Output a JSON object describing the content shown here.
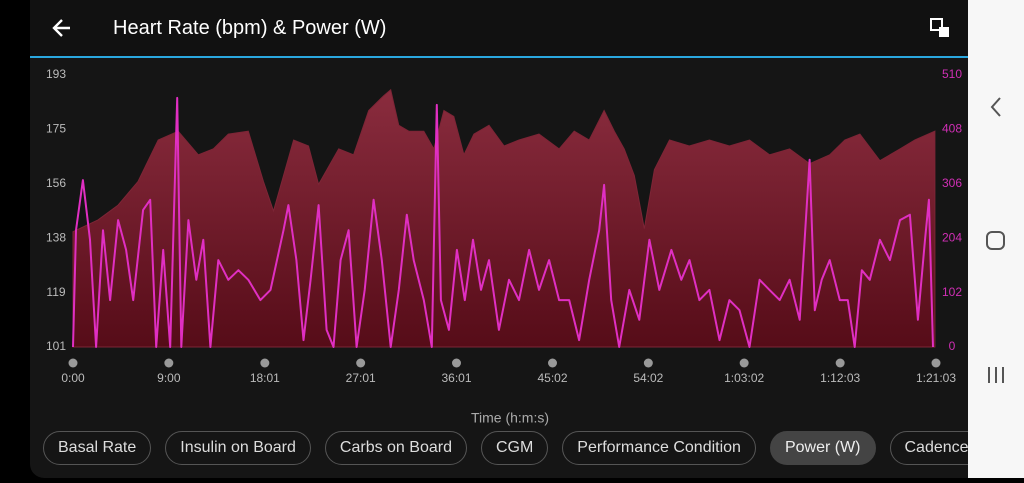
{
  "header": {
    "title": "Heart Rate (bpm) & Power (W)"
  },
  "chart_data": {
    "type": "line",
    "xlabel": "Time (h:m:s)",
    "xlim": [
      0,
      4863
    ],
    "xticks": [
      {
        "value": 0,
        "label": "0:00"
      },
      {
        "value": 540,
        "label": "9:00"
      },
      {
        "value": 1081,
        "label": "18:01"
      },
      {
        "value": 1621,
        "label": "27:01"
      },
      {
        "value": 2161,
        "label": "36:01"
      },
      {
        "value": 2702,
        "label": "45:02"
      },
      {
        "value": 3242,
        "label": "54:02"
      },
      {
        "value": 3782,
        "label": "1:03:02"
      },
      {
        "value": 4323,
        "label": "1:12:03"
      },
      {
        "value": 4863,
        "label": "1:21:03"
      }
    ],
    "ylim": [
      101,
      193
    ],
    "yticks": [
      101,
      {
        "value": 119.4,
        "label": "119"
      },
      {
        "value": 137.8,
        "label": "138"
      },
      {
        "value": 156.2,
        "label": "156"
      },
      {
        "value": 174.6,
        "label": "175"
      },
      193
    ],
    "y2lim": [
      0,
      510
    ],
    "y2ticks": [
      0,
      102,
      204,
      306,
      408,
      510
    ],
    "grid": false,
    "series": [
      {
        "kind": "area",
        "color": "#7d2536",
        "axis": "y",
        "x": [
          0,
          141,
          254,
          367,
          480,
          593,
          706,
          791,
          875,
          988,
          1073,
          1130,
          1243,
          1327,
          1384,
          1497,
          1581,
          1666,
          1751,
          1790,
          1836,
          1892,
          1977,
          2033,
          2090,
          2146,
          2203,
          2259,
          2344,
          2429,
          2513,
          2626,
          2739,
          2824,
          2909,
          2993,
          3050,
          3106,
          3163,
          3219,
          3276,
          3361,
          3473,
          3586,
          3699,
          3812,
          3925,
          4038,
          4151,
          4264,
          4349,
          4434,
          4547,
          4660,
          4744,
          4857
        ],
        "values": [
          140,
          144,
          149,
          157,
          171,
          174,
          166,
          168,
          173,
          174,
          157,
          147,
          171,
          169,
          156,
          168,
          166,
          181,
          186,
          188,
          176,
          174,
          174,
          168,
          181,
          179,
          166,
          173,
          176,
          169,
          171,
          173,
          168,
          174,
          171,
          181,
          174,
          168,
          159,
          141,
          161,
          171,
          169,
          171,
          169,
          171,
          166,
          168,
          163,
          166,
          171,
          173,
          164,
          168,
          171,
          174
        ]
      },
      {
        "kind": "line",
        "color": "#e02fc2",
        "axis": "y2",
        "x": [
          0,
          17,
          56,
          96,
          130,
          169,
          209,
          254,
          299,
          339,
          395,
          435,
          469,
          508,
          548,
          587,
          610,
          650,
          695,
          734,
          774,
          819,
          875,
          932,
          988,
          1056,
          1113,
          1186,
          1214,
          1259,
          1299,
          1339,
          1384,
          1429,
          1468,
          1508,
          1553,
          1598,
          1644,
          1694,
          1740,
          1790,
          1836,
          1881,
          1920,
          1977,
          2022,
          2050,
          2073,
          2118,
          2163,
          2208,
          2254,
          2299,
          2344,
          2400,
          2457,
          2513,
          2570,
          2626,
          2683,
          2739,
          2796,
          2852,
          2909,
          2965,
          2993,
          3033,
          3078,
          3135,
          3191,
          3248,
          3304,
          3372,
          3428,
          3474,
          3530,
          3586,
          3643,
          3699,
          3756,
          3812,
          3869,
          3925,
          3982,
          4038,
          4095,
          4151,
          4180,
          4219,
          4264,
          4321,
          4366,
          4405,
          4445,
          4490,
          4547,
          4603,
          4660,
          4716,
          4761,
          4801,
          4823,
          4846
        ],
        "values": [
          0,
          219,
          313,
          201,
          0,
          219,
          88,
          238,
          182,
          88,
          257,
          276,
          0,
          182,
          0,
          467,
          0,
          238,
          126,
          201,
          0,
          163,
          126,
          144,
          126,
          88,
          107,
          219,
          266,
          163,
          13,
          126,
          266,
          32,
          0,
          163,
          219,
          0,
          107,
          276,
          163,
          0,
          107,
          248,
          163,
          88,
          0,
          454,
          88,
          32,
          182,
          88,
          201,
          107,
          163,
          32,
          126,
          88,
          182,
          107,
          163,
          88,
          88,
          13,
          126,
          219,
          304,
          88,
          0,
          107,
          51,
          201,
          107,
          182,
          126,
          163,
          88,
          107,
          13,
          88,
          69,
          0,
          126,
          107,
          88,
          126,
          51,
          351,
          69,
          126,
          163,
          88,
          88,
          0,
          144,
          126,
          201,
          163,
          238,
          248,
          51,
          201,
          276,
          0
        ]
      }
    ]
  },
  "chips": [
    "Basal Rate",
    "Insulin on Board",
    "Carbs on Board",
    "CGM",
    "Performance Condition",
    "Power (W)",
    "Cadence (r"
  ],
  "selected_chip": 5
}
